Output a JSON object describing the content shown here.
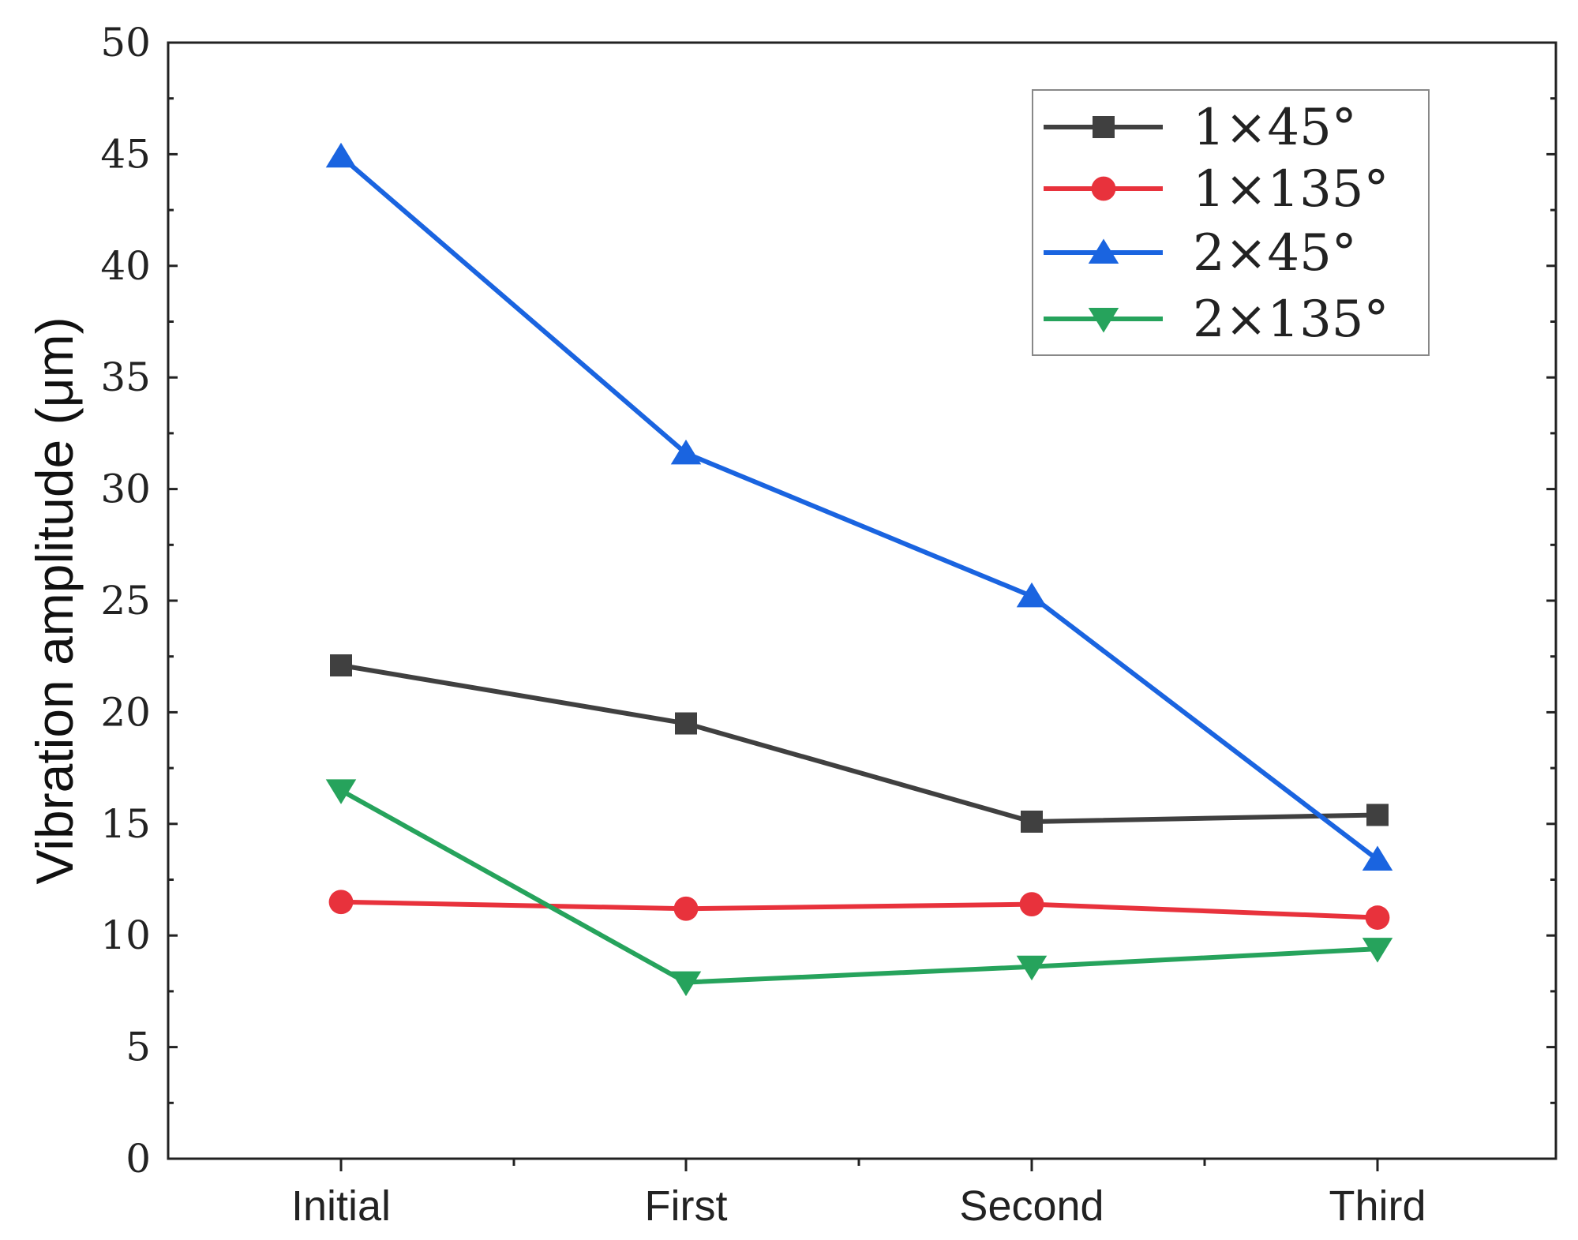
{
  "chart_data": {
    "type": "line",
    "title": "",
    "xlabel": "",
    "ylabel": "Vibration amplitude (μm)",
    "categories": [
      "Initial",
      "First",
      "Second",
      "Third"
    ],
    "ylim": [
      0,
      50
    ],
    "yticks": [
      0,
      5,
      10,
      15,
      20,
      25,
      30,
      35,
      40,
      45,
      50
    ],
    "grid": false,
    "legend_position": "top-right",
    "series": [
      {
        "name": "1×45°",
        "color": "#404040",
        "marker": "square",
        "values": [
          22.1,
          19.5,
          15.1,
          15.4
        ]
      },
      {
        "name": "1×135°",
        "color": "#e8323c",
        "marker": "circle",
        "values": [
          11.5,
          11.2,
          11.4,
          10.8
        ]
      },
      {
        "name": "2×45°",
        "color": "#1a64e0",
        "marker": "triangle-up",
        "values": [
          44.9,
          31.6,
          25.2,
          13.4
        ]
      },
      {
        "name": "2×135°",
        "color": "#26a35c",
        "marker": "triangle-down",
        "values": [
          16.5,
          7.9,
          8.6,
          9.4
        ]
      }
    ]
  }
}
